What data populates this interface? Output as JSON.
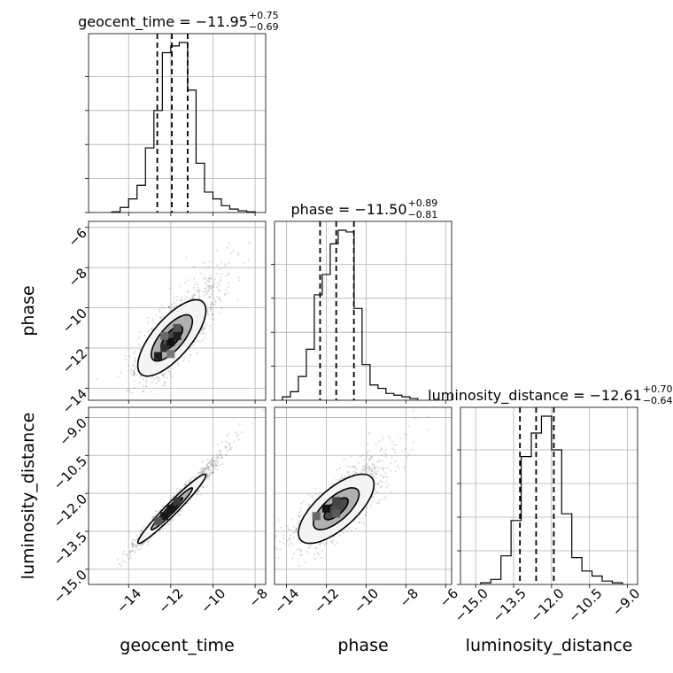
{
  "chart_data": {
    "type": "corner",
    "parameters": [
      {
        "name": "geocent_time",
        "median": -11.95,
        "plus": 0.75,
        "minus": 0.69,
        "title_prefix": "geocent_time = −11.95",
        "title_plus": "+0.75",
        "title_minus": "−0.69",
        "range": [
          -15.9,
          -7.5
        ],
        "ticks": [
          -14,
          -12,
          -10,
          -8
        ],
        "tick_labels": [
          "−14",
          "−12",
          "−10",
          "−8"
        ],
        "hist_edges": [
          -14.8,
          -14.4,
          -14.0,
          -13.6,
          -13.2,
          -12.8,
          -12.4,
          -12.0,
          -11.6,
          -11.2,
          -10.8,
          -10.4,
          -10.0,
          -9.6,
          -9.2,
          -8.8,
          -8.4,
          -8.0
        ],
        "hist_counts": [
          0.004,
          0.03,
          0.08,
          0.16,
          0.38,
          0.6,
          0.94,
          0.98,
          1.0,
          0.72,
          0.29,
          0.12,
          0.08,
          0.04,
          0.02,
          0.01,
          0.004
        ]
      },
      {
        "name": "phase",
        "median": -11.5,
        "plus": 0.89,
        "minus": 0.81,
        "title_prefix": "phase = −11.50",
        "title_plus": "+0.89",
        "title_minus": "−0.81",
        "range": [
          -14.6,
          -5.7
        ],
        "ticks": [
          -14,
          -12,
          -10,
          -8,
          -6
        ],
        "tick_labels": [
          "−14",
          "−12",
          "−10",
          "−8",
          "−6"
        ],
        "hist_edges": [
          -14.2,
          -13.8,
          -13.4,
          -13.0,
          -12.6,
          -12.2,
          -11.8,
          -11.4,
          -11.0,
          -10.6,
          -10.2,
          -9.8,
          -9.4,
          -9.0,
          -8.6,
          -8.2,
          -7.8,
          -7.4
        ],
        "hist_counts": [
          0.02,
          0.05,
          0.14,
          0.3,
          0.62,
          0.74,
          0.92,
          1.0,
          0.99,
          0.54,
          0.21,
          0.09,
          0.07,
          0.04,
          0.03,
          0.02,
          0.01
        ]
      },
      {
        "name": "luminosity_distance",
        "median": -12.61,
        "plus": 0.7,
        "minus": 0.64,
        "title_prefix": "luminosity_distance = −12.61",
        "title_plus": "+0.70",
        "title_minus": "−0.64",
        "range": [
          -15.6,
          -8.6
        ],
        "ticks": [
          -15.0,
          -13.5,
          -12.0,
          -10.5,
          -9.0
        ],
        "tick_labels": [
          "−15.0",
          "−13.5",
          "−12.0",
          "−10.5",
          "−9.0"
        ],
        "hist_edges": [
          -14.8,
          -14.4,
          -14.0,
          -13.6,
          -13.2,
          -12.8,
          -12.4,
          -12.0,
          -11.6,
          -11.2,
          -10.8,
          -10.4,
          -10.0,
          -9.6,
          -9.2
        ],
        "hist_counts": [
          0.01,
          0.03,
          0.17,
          0.38,
          0.76,
          0.9,
          1.0,
          0.8,
          0.42,
          0.16,
          0.08,
          0.05,
          0.02,
          0.01
        ]
      }
    ],
    "scatter_panels": [
      {
        "x_param": "geocent_time",
        "y_param": "phase",
        "mean": [
          -11.95,
          -11.5
        ],
        "std": [
          0.85,
          1.0
        ],
        "corr": 0.72,
        "core_cells": [
          {
            "x": -12.6,
            "y": -12.4,
            "shade": "#1e1e1e"
          },
          {
            "x": -12.3,
            "y": -12.0,
            "shade": "#2e2e2e"
          },
          {
            "x": -12.0,
            "y": -11.7,
            "shade": "#111111"
          },
          {
            "x": -11.7,
            "y": -11.4,
            "shade": "#202020"
          },
          {
            "x": -11.7,
            "y": -11.0,
            "shade": "#555555"
          },
          {
            "x": -12.3,
            "y": -11.4,
            "shade": "#6a6a6a"
          },
          {
            "x": -12.0,
            "y": -12.3,
            "shade": "#777777"
          }
        ]
      },
      {
        "x_param": "geocent_time",
        "y_param": "luminosity_distance",
        "mean": [
          -11.95,
          -12.61
        ],
        "std": [
          0.85,
          0.72
        ],
        "corr": 0.97,
        "core_cells": [
          {
            "x": -12.3,
            "y": -12.9,
            "shade": "#1a1a1a"
          },
          {
            "x": -12.0,
            "y": -12.6,
            "shade": "#151515"
          },
          {
            "x": -11.7,
            "y": -12.3,
            "shade": "#3a3a3a"
          },
          {
            "x": -12.6,
            "y": -13.1,
            "shade": "#555555"
          }
        ]
      },
      {
        "x_param": "phase",
        "y_param": "luminosity_distance",
        "mean": [
          -11.5,
          -12.61
        ],
        "std": [
          1.0,
          0.72
        ],
        "corr": 0.7,
        "core_cells": [
          {
            "x": -12.0,
            "y": -12.6,
            "shade": "#111111"
          },
          {
            "x": -11.5,
            "y": -12.3,
            "shade": "#444444"
          },
          {
            "x": -12.5,
            "y": -12.9,
            "shade": "#666666"
          },
          {
            "x": -11.5,
            "y": -12.8,
            "shade": "#5a5a5a"
          }
        ]
      }
    ],
    "contour_sigmas": [
      0.6,
      1.15,
      1.9
    ],
    "contour_fills": [
      "#4a4a4a",
      "#b0b0b0",
      "#f4f4f4"
    ],
    "grid": true,
    "line_color": "#000000",
    "point_color": "#000000"
  }
}
